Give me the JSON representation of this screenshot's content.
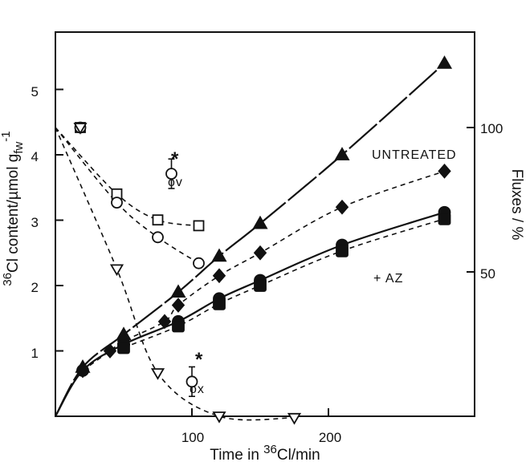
{
  "chart_data": {
    "type": "line",
    "title": "",
    "xlabel": {
      "pre": "Time in ",
      "sup": "36",
      "post": "Cl/min"
    },
    "ylabel_left": {
      "sup": "36",
      "main": "Cl content/µmol g",
      "sub": "fw",
      "sup2": "-1"
    },
    "ylabel_right": "Fluxes / %",
    "x_ticks": [
      100,
      200
    ],
    "y_left_ticks": [
      1,
      2,
      3,
      4,
      5
    ],
    "y_right_ticks": [
      50,
      100
    ],
    "xlim": [
      0,
      300
    ],
    "ylim_left": [
      0,
      5.7
    ],
    "ylim_right": [
      0,
      125
    ],
    "annotations": {
      "untreated": "UNTREATED",
      "az": "+ AZ",
      "phi_ov_symbol": "Φ",
      "phi_ov_star": "*",
      "phi_ov_sub": "ov",
      "phi_ox_symbol": "Φ",
      "phi_ox_star": "*",
      "phi_ox_sub": "ox"
    },
    "series": [
      {
        "axis": "left",
        "marker": "filled-triangle",
        "line": "solid-long-dash",
        "points": [
          [
            20,
            0.75
          ],
          [
            50,
            1.25
          ],
          [
            90,
            1.9
          ],
          [
            120,
            2.45
          ],
          [
            150,
            2.95
          ],
          [
            210,
            4.0
          ],
          [
            285,
            5.4
          ]
        ]
      },
      {
        "axis": "left",
        "marker": "filled-diamond",
        "line": "dashed",
        "points": [
          [
            20,
            0.7
          ],
          [
            40,
            1.0
          ],
          [
            50,
            1.15
          ],
          [
            80,
            1.45
          ],
          [
            90,
            1.7
          ],
          [
            120,
            2.15
          ],
          [
            150,
            2.5
          ],
          [
            210,
            3.2
          ],
          [
            285,
            3.75
          ]
        ]
      },
      {
        "axis": "left",
        "marker": "filled-circle",
        "line": "solid",
        "points": [
          [
            20,
            0.7
          ],
          [
            50,
            1.1
          ],
          [
            90,
            1.45
          ],
          [
            120,
            1.8
          ],
          [
            150,
            2.08
          ],
          [
            210,
            2.62
          ],
          [
            285,
            3.12
          ]
        ]
      },
      {
        "axis": "left",
        "marker": "filled-square",
        "line": "dashed",
        "points": [
          [
            50,
            1.05
          ],
          [
            90,
            1.38
          ],
          [
            120,
            1.72
          ],
          [
            150,
            2.0
          ],
          [
            210,
            2.53
          ],
          [
            285,
            3.02
          ]
        ]
      },
      {
        "axis": "right",
        "marker": "open-square",
        "line": "dashed",
        "points": [
          [
            0,
            100
          ],
          [
            45,
            77
          ],
          [
            75,
            68
          ],
          [
            105,
            66
          ]
        ]
      },
      {
        "axis": "right",
        "marker": "open-circle",
        "line": "dashed",
        "points": [
          [
            0,
            100
          ],
          [
            45,
            74
          ],
          [
            75,
            62
          ],
          [
            105,
            53
          ]
        ]
      },
      {
        "axis": "right",
        "marker": "open-triangle-down",
        "line": "dashed",
        "points": [
          [
            0,
            100
          ],
          [
            45,
            51
          ],
          [
            75,
            15
          ],
          [
            120,
            0
          ],
          [
            175,
            -0.5
          ]
        ]
      }
    ],
    "standalone_points": [
      {
        "axis": "right",
        "marker": "open-circle-errorbar",
        "x": 85,
        "y": 84,
        "err": 4
      },
      {
        "axis": "right",
        "marker": "open-circle-errorbar",
        "x": 100,
        "y": 12,
        "err": 4
      }
    ]
  }
}
